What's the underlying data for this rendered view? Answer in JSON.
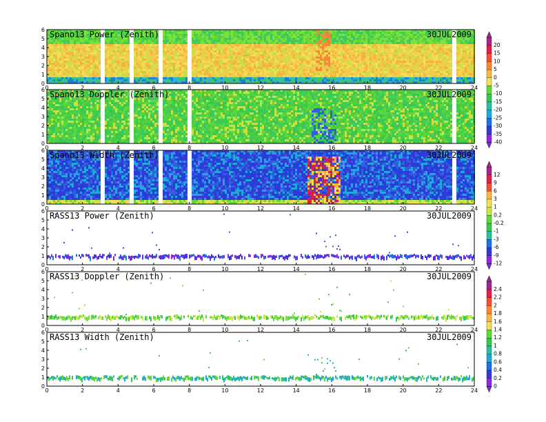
{
  "chart_data": [
    {
      "type": "heatmap",
      "title": "Spano13 Power (Zenith)",
      "date": "30JUL2009",
      "xlim": [
        0,
        24
      ],
      "ylim": [
        0,
        6
      ],
      "x_ticks": [
        "0",
        "2",
        "4",
        "6",
        "8",
        "10",
        "12",
        "14",
        "16",
        "18",
        "20",
        "22",
        "24"
      ],
      "y_ticks": [
        "0",
        "1",
        "2",
        "3",
        "4",
        "5",
        "6"
      ],
      "colorbar": {
        "group": 1,
        "labels": [
          "20",
          "15",
          "10",
          "5",
          "0",
          "-5",
          "-10",
          "-15",
          "-20",
          "-25",
          "-30",
          "-35",
          "-40"
        ]
      },
      "data_gaps_hours": [
        3.1,
        4.7,
        6.3,
        8.0,
        22.8
      ],
      "dense": true
    },
    {
      "type": "heatmap",
      "title": "Spano13 Doppler (Zenith)",
      "date": "30JUL2009",
      "xlim": [
        0,
        24
      ],
      "ylim": [
        0,
        6
      ],
      "x_ticks": [
        "0",
        "2",
        "4",
        "6",
        "8",
        "10",
        "12",
        "14",
        "16",
        "18",
        "20",
        "22",
        "24"
      ],
      "y_ticks": [
        "0",
        "1",
        "2",
        "3",
        "4",
        "5",
        "6"
      ],
      "colorbar": {
        "group": 1
      },
      "data_gaps_hours": [
        3.1,
        4.7,
        6.3,
        8.0,
        22.8
      ],
      "dense": true
    },
    {
      "type": "heatmap",
      "title": "Spano13 Width (Zenith)",
      "date": "30JUL2009",
      "xlim": [
        0,
        24
      ],
      "ylim": [
        0,
        6
      ],
      "x_ticks": [
        "0",
        "2",
        "4",
        "6",
        "8",
        "10",
        "12",
        "14",
        "16",
        "18",
        "20",
        "22",
        "24"
      ],
      "y_ticks": [
        "0",
        "1",
        "2",
        "3",
        "4",
        "5",
        "6"
      ],
      "colorbar": {
        "group": 2,
        "labels": [
          "12",
          "9",
          "6",
          "3",
          "1",
          "0.2",
          "-0.2",
          "-1",
          "-3",
          "-6",
          "-9",
          "-12"
        ]
      },
      "data_gaps_hours": [
        3.1,
        4.7,
        6.3,
        8.0,
        22.8
      ],
      "dense": true
    },
    {
      "type": "heatmap",
      "title": "RASS13 Power (Zenith)",
      "date": "30JUL2009",
      "xlim": [
        0,
        24
      ],
      "ylim": [
        0,
        6
      ],
      "x_ticks": [
        "0",
        "2",
        "4",
        "6",
        "8",
        "10",
        "12",
        "14",
        "16",
        "18",
        "20",
        "22",
        "24"
      ],
      "y_ticks": [
        "0",
        "1",
        "2",
        "3",
        "4",
        "5",
        "6"
      ],
      "colorbar": {
        "group": 2
      },
      "dense": false
    },
    {
      "type": "heatmap",
      "title": "RASS13 Doppler (Zenith)",
      "date": "30JUL2009",
      "xlim": [
        0,
        24
      ],
      "ylim": [
        0,
        6
      ],
      "x_ticks": [
        "0",
        "2",
        "4",
        "6",
        "8",
        "10",
        "12",
        "14",
        "16",
        "18",
        "20",
        "22",
        "24"
      ],
      "y_ticks": [
        "0",
        "1",
        "2",
        "3",
        "4",
        "5",
        "6"
      ],
      "colorbar": {
        "group": 3,
        "labels": [
          "2.4",
          "2.2",
          "2",
          "1.8",
          "1.6",
          "1.4",
          "1.2",
          "1",
          "0.8",
          "0.6",
          "0.4",
          "0.2",
          "0"
        ]
      },
      "dense": false
    },
    {
      "type": "heatmap",
      "title": "RASS13 Width (Zenith)",
      "date": "30JUL2009",
      "xlim": [
        0,
        24
      ],
      "ylim": [
        0,
        6
      ],
      "x_ticks": [
        "0",
        "2",
        "4",
        "6",
        "8",
        "10",
        "12",
        "14",
        "16",
        "18",
        "20",
        "22",
        "24"
      ],
      "y_ticks": [
        "0",
        "1",
        "2",
        "3",
        "4",
        "5",
        "6"
      ],
      "colorbar": {
        "group": 3
      },
      "dense": false
    }
  ],
  "colorbar_palette": [
    "#a0288c",
    "#e0204a",
    "#f05038",
    "#f88838",
    "#f8b848",
    "#f0e058",
    "#c8e840",
    "#60d838",
    "#38c850",
    "#28c0a0",
    "#20a8d8",
    "#2070e0",
    "#3838d8",
    "#8a2be2"
  ]
}
